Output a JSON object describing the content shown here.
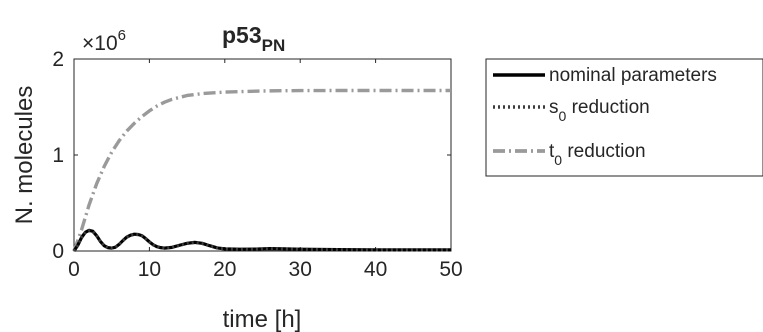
{
  "chart_data": {
    "type": "line",
    "title": "p53",
    "title_subscript": "PN",
    "xlabel": "time [h]",
    "ylabel": "N. molecules",
    "y_exponent_label": "×10",
    "y_exponent_power": "6",
    "xlim": [
      0,
      50
    ],
    "ylim": [
      0,
      2000000
    ],
    "x_ticks": [
      0,
      10,
      20,
      30,
      40,
      50
    ],
    "x_tick_labels": [
      "0",
      "10",
      "20",
      "30",
      "40",
      "50"
    ],
    "y_ticks": [
      0,
      1000000,
      2000000
    ],
    "y_tick_labels": [
      "0",
      "1",
      "2"
    ],
    "grid": false,
    "legend_position": "outside-right",
    "series": [
      {
        "name": "nominal parameters",
        "name_sub": "",
        "name_rest": "",
        "style": "solid",
        "color": "#000000",
        "x": [
          0,
          0.5,
          1,
          1.5,
          2,
          2.5,
          3,
          3.5,
          4,
          4.5,
          5,
          5.5,
          6,
          6.5,
          7,
          7.5,
          8,
          8.5,
          9,
          9.5,
          10,
          10.5,
          11,
          11.5,
          12,
          13,
          14,
          15,
          16,
          17,
          18,
          19,
          20,
          22,
          24,
          26,
          28,
          30,
          35,
          40,
          45,
          50
        ],
        "y": [
          0,
          60000,
          140000,
          195000,
          215000,
          205000,
          160000,
          100000,
          55000,
          35000,
          30000,
          40000,
          70000,
          110000,
          145000,
          165000,
          175000,
          172000,
          160000,
          130000,
          95000,
          65000,
          45000,
          35000,
          30000,
          38000,
          60000,
          80000,
          90000,
          80000,
          55000,
          32000,
          22000,
          18000,
          20000,
          25000,
          22000,
          18000,
          15000,
          12000,
          12000,
          12000
        ]
      },
      {
        "name": "s",
        "name_sub": "0",
        "name_rest": " reduction",
        "style": "dotted",
        "color": "#3c3c3c",
        "x": [
          0,
          0.5,
          1,
          1.5,
          2,
          2.5,
          3,
          3.5,
          4,
          4.5,
          5,
          5.5,
          6,
          6.5,
          7,
          7.5,
          8,
          8.5,
          9,
          9.5,
          10,
          10.5,
          11,
          11.5,
          12,
          13,
          14,
          15,
          16,
          17,
          18,
          19,
          20,
          22,
          24,
          26,
          28,
          30,
          35,
          40,
          45,
          50
        ],
        "y": [
          0,
          58000,
          137000,
          192000,
          212000,
          202000,
          158000,
          98000,
          54000,
          34000,
          30000,
          40000,
          69000,
          108000,
          143000,
          163000,
          172000,
          170000,
          158000,
          128000,
          93000,
          64000,
          44000,
          34000,
          30000,
          37000,
          58000,
          78000,
          88000,
          78000,
          53000,
          31000,
          21000,
          17000,
          19000,
          24000,
          21000,
          17000,
          14000,
          11000,
          11000,
          11000
        ]
      },
      {
        "name": "t",
        "name_sub": "0",
        "name_rest": " reduction",
        "style": "dashdot",
        "color": "#9a9a9a",
        "x": [
          0,
          1,
          2,
          3,
          4,
          5,
          6,
          7,
          8,
          9,
          10,
          11,
          12,
          13,
          14,
          15,
          16,
          17,
          18,
          19,
          20,
          22,
          24,
          26,
          28,
          30,
          35,
          40,
          45,
          50
        ],
        "y": [
          0,
          220000,
          480000,
          700000,
          880000,
          1030000,
          1150000,
          1250000,
          1330000,
          1400000,
          1460000,
          1510000,
          1550000,
          1580000,
          1600000,
          1620000,
          1630000,
          1640000,
          1645000,
          1650000,
          1655000,
          1660000,
          1665000,
          1668000,
          1670000,
          1671000,
          1672000,
          1672000,
          1672000,
          1672000
        ]
      }
    ]
  }
}
